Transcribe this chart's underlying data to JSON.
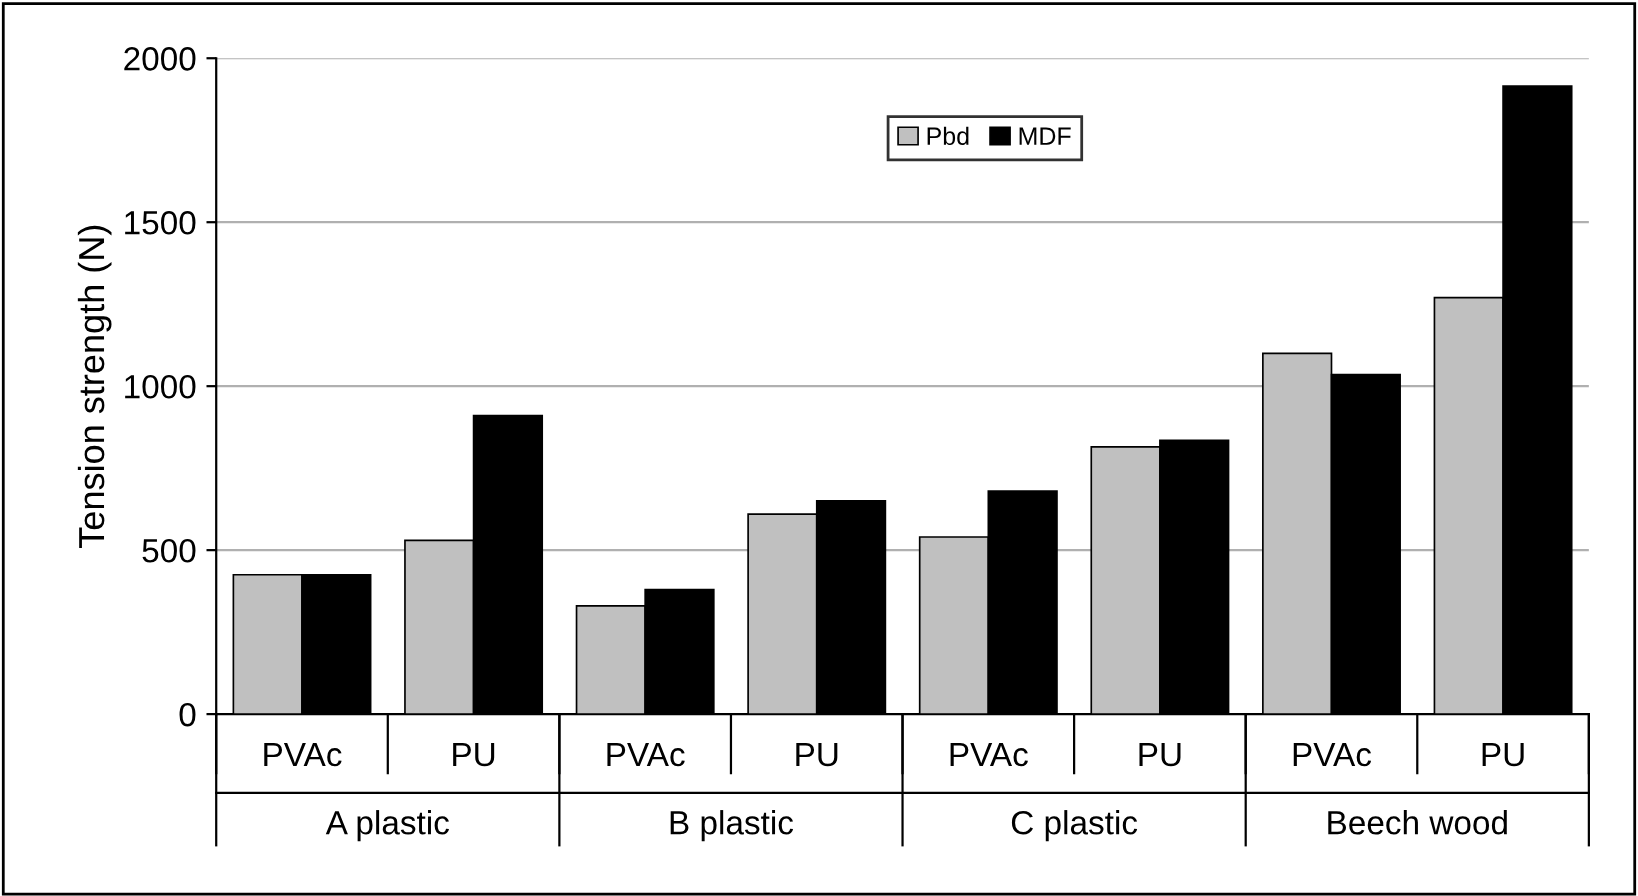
{
  "chart_data": {
    "type": "bar",
    "ylabel": "Tension strength (N)",
    "categories": [
      "PVAc",
      "PU",
      "PVAc",
      "PU",
      "PVAc",
      "PU",
      "PVAc",
      "PU"
    ],
    "series": [
      {
        "name": "Pbd",
        "color": "#c0c0c0",
        "values": [
          425,
          530,
          330,
          610,
          540,
          815,
          1100,
          1270
        ]
      },
      {
        "name": "MDF",
        "color": "#000000",
        "values": [
          425,
          910,
          380,
          650,
          680,
          835,
          1035,
          1915
        ]
      }
    ],
    "annotations": [
      "A plastic",
      "B plastic",
      "C plastic",
      "Beech wood"
    ],
    "ylim": [
      0,
      2000
    ],
    "yticks": [
      0,
      500,
      1000,
      1500,
      2000
    ],
    "grid": "y",
    "legend": "top"
  }
}
